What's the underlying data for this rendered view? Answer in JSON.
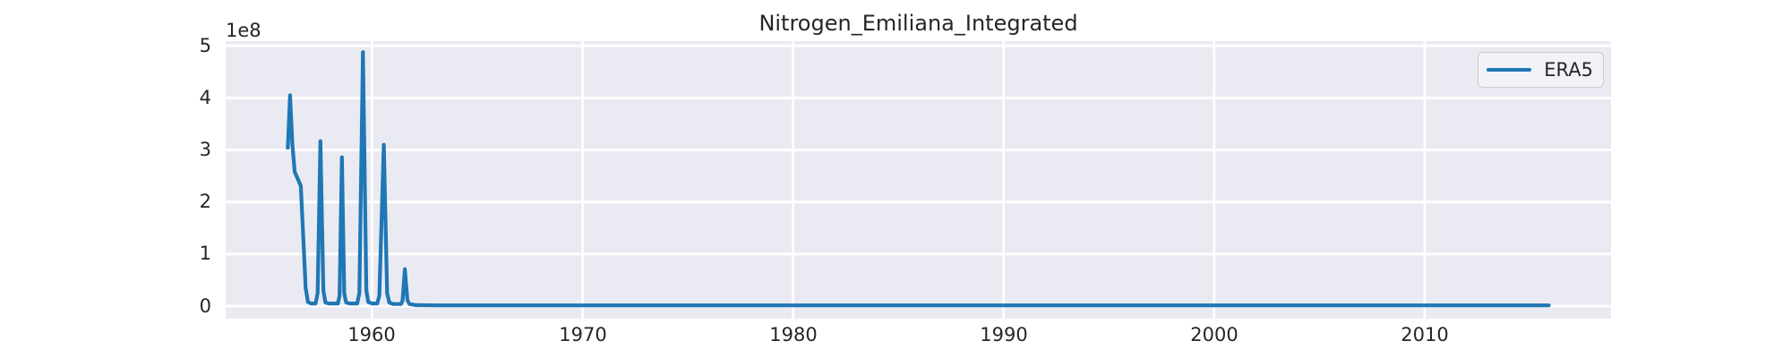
{
  "colors": {
    "figure_bg": "#ffffff",
    "plot_bg": "#eaeaf2",
    "grid": "#ffffff",
    "line": "#1f77b4",
    "text": "#262626",
    "legend_bg": "#f2f2f8",
    "legend_border": "#cbcbcb"
  },
  "chart_data": {
    "type": "line",
    "title": "Nitrogen_Emiliana_Integrated",
    "xlabel": "",
    "ylabel": "",
    "y_offset_label": "1e8",
    "y_unit_scale": "1e8",
    "grid": true,
    "x_ticks": [
      1960,
      1970,
      1980,
      1990,
      2000,
      2010
    ],
    "y_ticks": [
      0,
      1,
      2,
      3,
      4,
      5
    ],
    "xlim": [
      1953.05,
      2018.85
    ],
    "ylim": [
      -0.24,
      5.09
    ],
    "legend": {
      "position": "upper right"
    },
    "series": [
      {
        "name": "ERA5",
        "color": "#1f77b4",
        "points_note": "x = decimal year, y = value in units of 1e8",
        "points": [
          [
            1956.0,
            3.04
          ],
          [
            1956.11,
            4.05
          ],
          [
            1956.22,
            3.1
          ],
          [
            1956.33,
            2.58
          ],
          [
            1956.62,
            2.31
          ],
          [
            1956.75,
            1.2
          ],
          [
            1956.85,
            0.35
          ],
          [
            1956.96,
            0.08
          ],
          [
            1957.1,
            0.05
          ],
          [
            1957.32,
            0.05
          ],
          [
            1957.42,
            0.25
          ],
          [
            1957.55,
            3.17
          ],
          [
            1957.69,
            0.3
          ],
          [
            1957.79,
            0.07
          ],
          [
            1957.95,
            0.05
          ],
          [
            1958.38,
            0.05
          ],
          [
            1958.46,
            0.2
          ],
          [
            1958.57,
            2.86
          ],
          [
            1958.68,
            0.25
          ],
          [
            1958.77,
            0.07
          ],
          [
            1958.95,
            0.05
          ],
          [
            1959.3,
            0.05
          ],
          [
            1959.4,
            0.25
          ],
          [
            1959.57,
            4.88
          ],
          [
            1959.73,
            0.3
          ],
          [
            1959.82,
            0.08
          ],
          [
            1960.0,
            0.05
          ],
          [
            1960.25,
            0.05
          ],
          [
            1960.35,
            0.2
          ],
          [
            1960.56,
            3.1
          ],
          [
            1960.72,
            0.25
          ],
          [
            1960.82,
            0.07
          ],
          [
            1961.0,
            0.04
          ],
          [
            1961.38,
            0.04
          ],
          [
            1961.45,
            0.1
          ],
          [
            1961.56,
            0.71
          ],
          [
            1961.68,
            0.12
          ],
          [
            1961.78,
            0.04
          ],
          [
            1962.1,
            0.02
          ],
          [
            1963.0,
            0.015
          ],
          [
            2015.9,
            0.015
          ]
        ]
      }
    ]
  }
}
